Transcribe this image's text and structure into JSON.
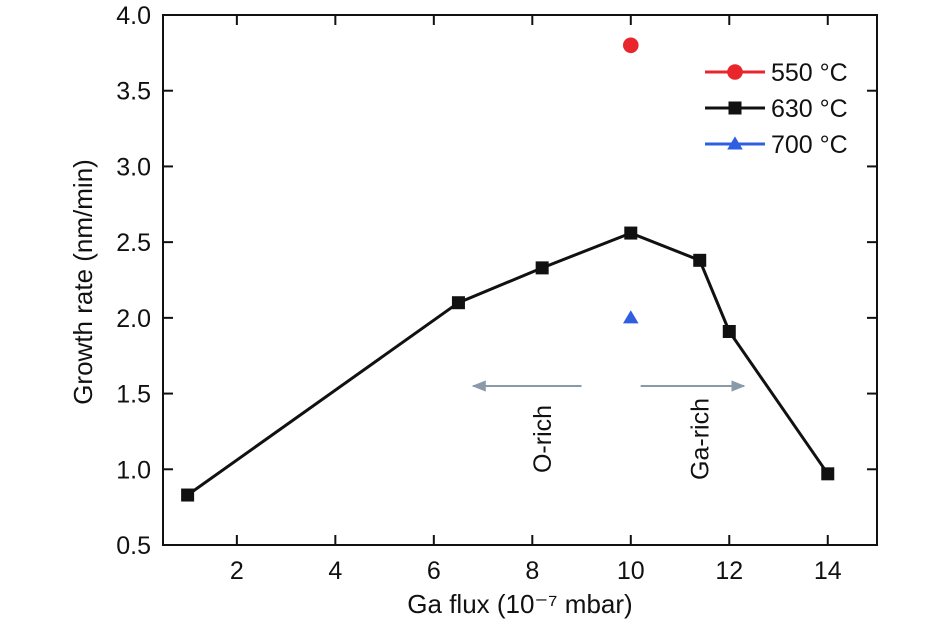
{
  "chart_data": {
    "type": "scatter",
    "xlabel": "Ga flux (10⁻⁷ mbar)",
    "ylabel": "Growth rate (nm/min)",
    "xlim": [
      0.5,
      15
    ],
    "ylim": [
      0.5,
      4.0
    ],
    "xticks": [
      2,
      4,
      6,
      8,
      10,
      12,
      14
    ],
    "yticks": [
      0.5,
      1.0,
      1.5,
      2.0,
      2.5,
      3.0,
      3.5,
      4.0
    ],
    "xtick_labels": [
      "2",
      "4",
      "6",
      "8",
      "10",
      "12",
      "14"
    ],
    "ytick_labels": [
      "0.5",
      "1.0",
      "1.5",
      "2.0",
      "2.5",
      "3.0",
      "3.5",
      "4.0"
    ],
    "grid": false,
    "legend": "top-right",
    "series": [
      {
        "name": "550 °C",
        "color": "#e8262b",
        "marker": "circle",
        "line": false,
        "x": [
          10.0
        ],
        "y": [
          3.8
        ]
      },
      {
        "name": "630 °C",
        "color": "#111111",
        "marker": "square",
        "line": true,
        "x": [
          1.0,
          6.5,
          8.2,
          10.0,
          11.4,
          12.0,
          14.0
        ],
        "y": [
          0.83,
          2.1,
          2.33,
          2.56,
          2.38,
          1.91,
          0.97
        ]
      },
      {
        "name": "700 °C",
        "color": "#2f5fe0",
        "marker": "triangle",
        "line": false,
        "x": [
          10.0
        ],
        "y": [
          2.0
        ]
      }
    ],
    "annotations": [
      {
        "text": "O-rich",
        "x": 8.2,
        "y": 1.2,
        "rotation": -90
      },
      {
        "text": "Ga-rich",
        "x": 11.4,
        "y": 1.2,
        "rotation": -90
      }
    ],
    "arrows": [
      {
        "from": [
          9.0,
          1.55
        ],
        "to": [
          6.8,
          1.55
        ],
        "color": "#8a9aa8"
      },
      {
        "from": [
          10.2,
          1.55
        ],
        "to": [
          12.3,
          1.55
        ],
        "color": "#8a9aa8"
      }
    ]
  }
}
